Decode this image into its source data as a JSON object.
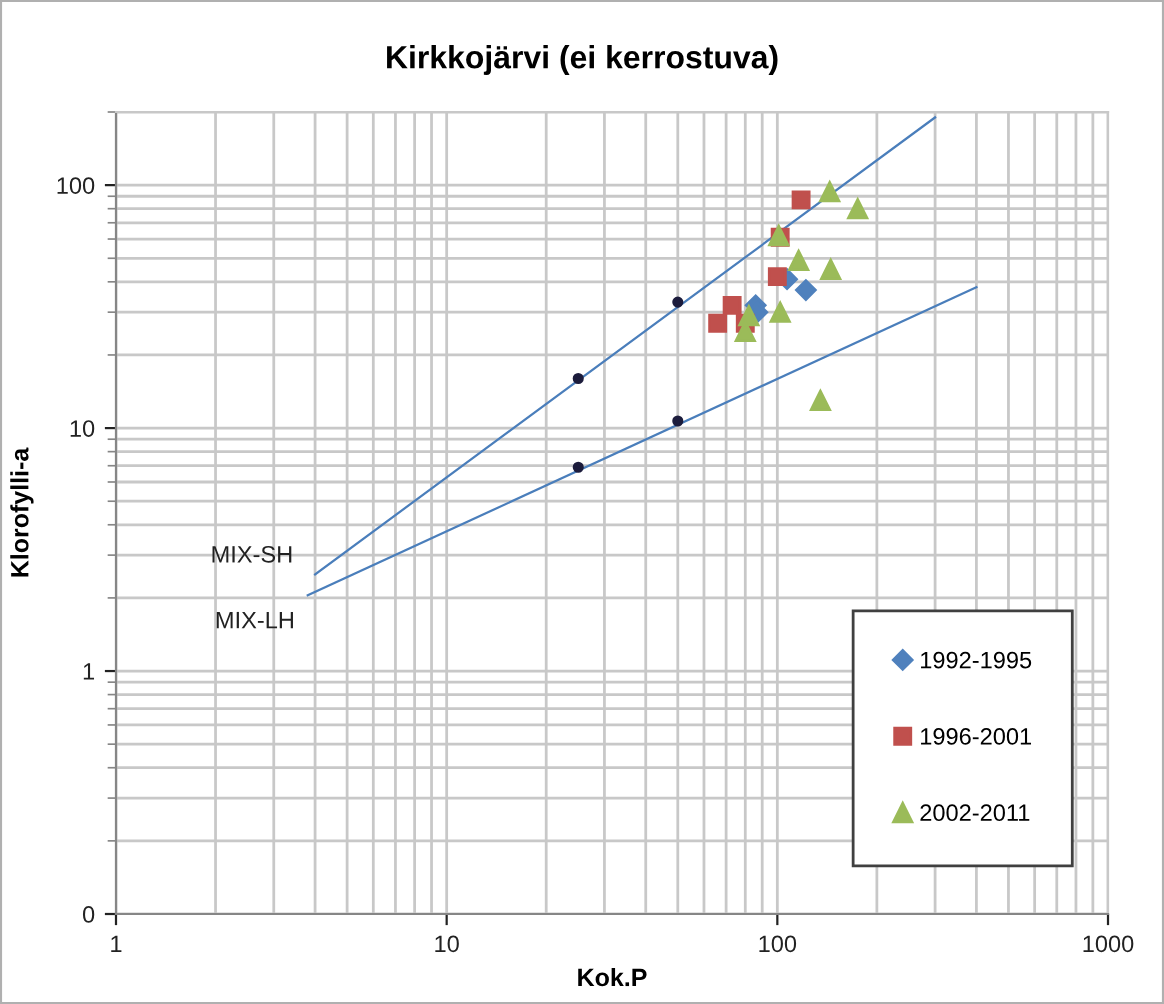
{
  "chart_data": {
    "type": "scatter",
    "title": "Kirkkojärvi (ei kerrostuva)",
    "xlabel": "Kok.P",
    "ylabel": "Klorofylli-a",
    "log": "xy",
    "xlim": [
      1,
      1000
    ],
    "ylim": [
      0.1,
      200
    ],
    "xticks": [
      1,
      10,
      100,
      1000
    ],
    "yticks": [
      {
        "value": 0.1,
        "label": "0"
      },
      1,
      10,
      100
    ],
    "grid": true,
    "legend": "bottom right",
    "series": [
      {
        "type": "line",
        "x": [
          4,
          300
        ],
        "values": [
          2.5,
          190
        ],
        "color": "#4a7ebb",
        "marker": "none"
      },
      {
        "type": "line",
        "x": [
          3.8,
          400
        ],
        "values": [
          2.05,
          38
        ],
        "color": "#4a7ebb",
        "marker": "none"
      },
      {
        "x": [
          25,
          50
        ],
        "values": [
          16,
          33
        ],
        "color": "#1c1c3c",
        "marker": "circle"
      },
      {
        "x": [
          25,
          50
        ],
        "values": [
          6.9,
          10.7
        ],
        "color": "#1c1c3c",
        "marker": "circle"
      },
      {
        "name": "1992-1995",
        "x": [
          107,
          122,
          86,
          87
        ],
        "values": [
          41,
          37,
          32,
          30
        ],
        "color": "#4f81bd",
        "marker": "diamond"
      },
      {
        "name": "1996-2001",
        "x": [
          118,
          102,
          100,
          73,
          66,
          80
        ],
        "values": [
          87,
          61,
          42,
          32,
          27,
          27
        ],
        "color": "#c0504d",
        "marker": "square"
      },
      {
        "name": "2002-2011",
        "x": [
          144,
          175,
          101,
          116,
          145,
          102,
          82,
          80,
          135
        ],
        "values": [
          94,
          80,
          62,
          49,
          45,
          30,
          29,
          25,
          13
        ],
        "color": "#9bbb59",
        "marker": "triangle"
      }
    ],
    "annotations": [
      "MIX-SH",
      "MIX-LH"
    ]
  }
}
